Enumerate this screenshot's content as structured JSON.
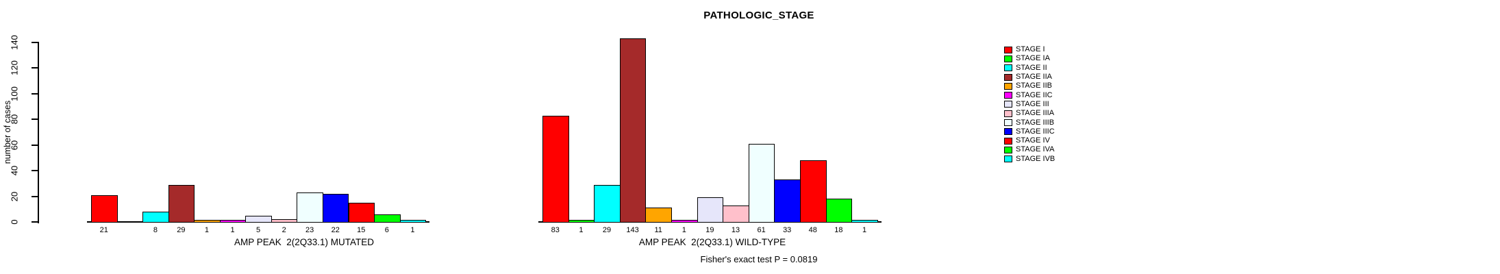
{
  "chart_data": {
    "type": "bar",
    "title": "PATHOLOGIC_STAGE",
    "ylabel": "number of cases",
    "ylim": [
      0,
      140
    ],
    "yticks": [
      0,
      20,
      40,
      60,
      80,
      100,
      120,
      140
    ],
    "grid": false,
    "legend_position": "right",
    "bar_border_color": "#000000",
    "categories": [
      "STAGE I",
      "STAGE IA",
      "STAGE II",
      "STAGE IIA",
      "STAGE IIB",
      "STAGE IIC",
      "STAGE III",
      "STAGE IIIA",
      "STAGE IIIB",
      "STAGE IIIC",
      "STAGE IV",
      "STAGE IVA",
      "STAGE IVB"
    ],
    "colors": [
      "#FF0000",
      "#00FF00",
      "#00FFFF",
      "#A52A2A",
      "#FFA500",
      "#FF00FF",
      "#E6E6FA",
      "#FFC0CB",
      "#F0FFFF",
      "#0000FF",
      "#FF0000",
      "#00FF00",
      "#00FFFF"
    ],
    "groups": [
      {
        "xlabel": "AMP PEAK  2(2Q33.1) MUTATED",
        "values": [
          21,
          null,
          8,
          29,
          1,
          1,
          5,
          2,
          23,
          22,
          15,
          6,
          1
        ]
      },
      {
        "xlabel": "AMP PEAK  2(2Q33.1) WILD-TYPE",
        "values": [
          83,
          1,
          29,
          143,
          11,
          1,
          19,
          13,
          61,
          33,
          48,
          18,
          1
        ]
      }
    ],
    "annotation": "Fisher's exact test P = 0.0819"
  }
}
